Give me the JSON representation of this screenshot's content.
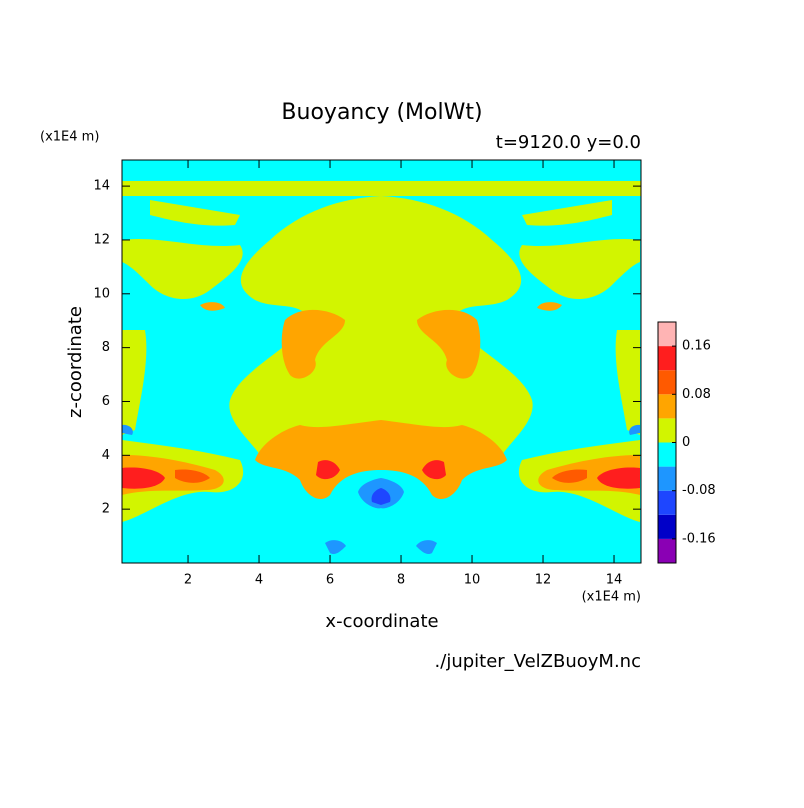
{
  "chart_data": {
    "type": "contour",
    "title": "Buoyancy (MolWt)",
    "subtitle": "t=9120.0 y=0.0",
    "x_label": "x-coordinate",
    "y_label": "z-coordinate",
    "x_unit": "(x1E4 m)",
    "y_unit": "(x1E4 m)",
    "source": "./jupiter_VelZBuoyM.nc",
    "xlim": [
      0.14,
      14.76
    ],
    "xticks": [
      2,
      4,
      6,
      8,
      10,
      12,
      14
    ],
    "ylim": [
      0.0,
      14.97
    ],
    "yticks": [
      2,
      4,
      6,
      8,
      10,
      12,
      14
    ],
    "colorbar": {
      "levels": [
        -0.2,
        -0.16,
        -0.12,
        -0.08,
        -0.04,
        0,
        0.04,
        0.08,
        0.12,
        0.16,
        0.2
      ],
      "colors": [
        "#8a00b4",
        "#0000c8",
        "#1e46ff",
        "#1e96ff",
        "#00ffff",
        "#d2f500",
        "#ffa500",
        "#ff5a00",
        "#ff1e1e",
        "#ffb4b4"
      ],
      "ticks": [
        -0.16,
        -0.08,
        0,
        0.08,
        0.16
      ]
    }
  }
}
